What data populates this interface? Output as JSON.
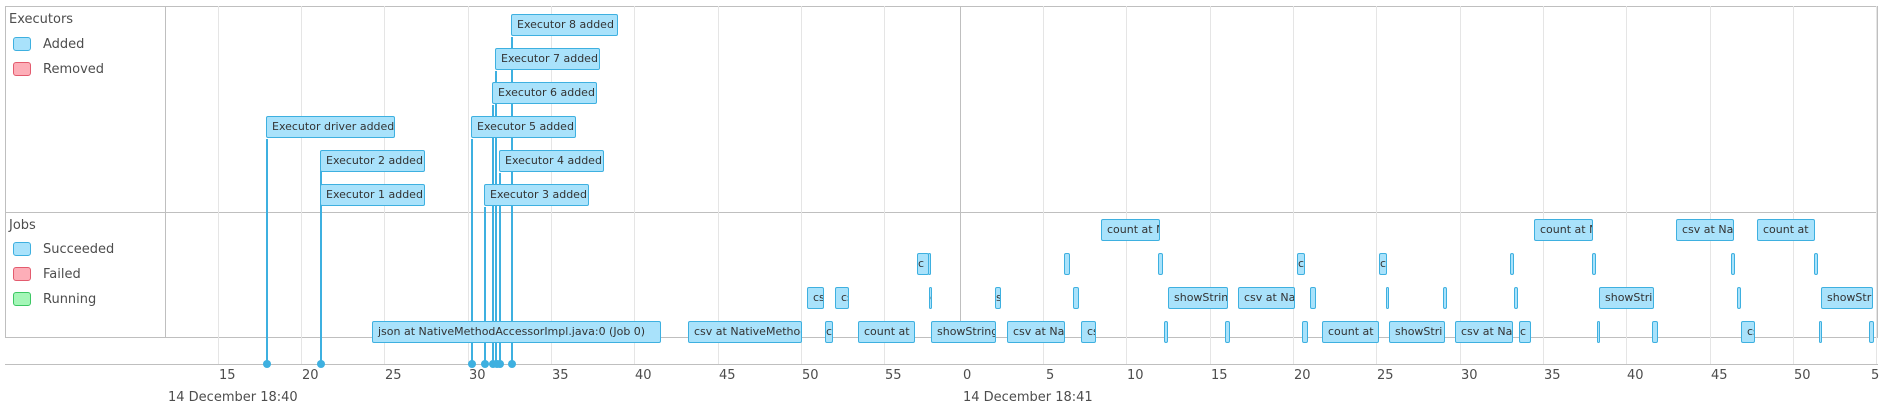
{
  "executors": {
    "title": "Executors",
    "legend": [
      {
        "label": "Added",
        "color": "#a9e2fb"
      },
      {
        "label": "Removed",
        "color": "#fdaeb8"
      }
    ],
    "events": [
      {
        "label": "Executor driver added"
      },
      {
        "label": "Executor 1 added"
      },
      {
        "label": "Executor 2 added"
      },
      {
        "label": "Executor 3 added"
      },
      {
        "label": "Executor 4 added"
      },
      {
        "label": "Executor 5 added"
      },
      {
        "label": "Executor 6 added"
      },
      {
        "label": "Executor 7 added"
      },
      {
        "label": "Executor 8 added"
      }
    ]
  },
  "jobs": {
    "title": "Jobs",
    "legend": [
      {
        "label": "Succeeded",
        "color": "#a9e2fb"
      },
      {
        "label": "Failed",
        "color": "#fdaeb8"
      },
      {
        "label": "Running",
        "color": "#a4f6b7"
      }
    ],
    "boxes": [
      {
        "label": "json at NativeMethodAccessorImpl.java:0 (Job 0)"
      },
      {
        "label": "csv at NativeMethod"
      },
      {
        "label": "cs"
      },
      {
        "label": "cs"
      },
      {
        "label": "c"
      },
      {
        "label": "c"
      },
      {
        "label": "count at N"
      },
      {
        "label": "showString"
      },
      {
        "label": "c"
      },
      {
        "label": "s"
      },
      {
        "label": "csv at Nat"
      },
      {
        "label": "cs"
      },
      {
        "label": "count at N"
      },
      {
        "label": "showStrin"
      },
      {
        "label": "csv at Nat"
      },
      {
        "label": "c"
      },
      {
        "label": "c"
      },
      {
        "label": "count at"
      },
      {
        "label": "showStri"
      },
      {
        "label": "csv at Na"
      },
      {
        "label": "c"
      },
      {
        "label": "count at N"
      },
      {
        "label": "showStri"
      },
      {
        "label": "csv at Na"
      },
      {
        "label": "cs"
      },
      {
        "label": "count at"
      },
      {
        "label": "showStr"
      },
      {
        "label": "c"
      }
    ]
  },
  "axis": {
    "ticks": [
      "15",
      "20",
      "25",
      "30",
      "35",
      "40",
      "45",
      "50",
      "55",
      "0",
      "5",
      "10",
      "15",
      "20",
      "25",
      "30",
      "35",
      "40",
      "45",
      "50",
      "5"
    ],
    "date_labels": [
      "14 December 18:40",
      "14 December 18:41"
    ]
  }
}
